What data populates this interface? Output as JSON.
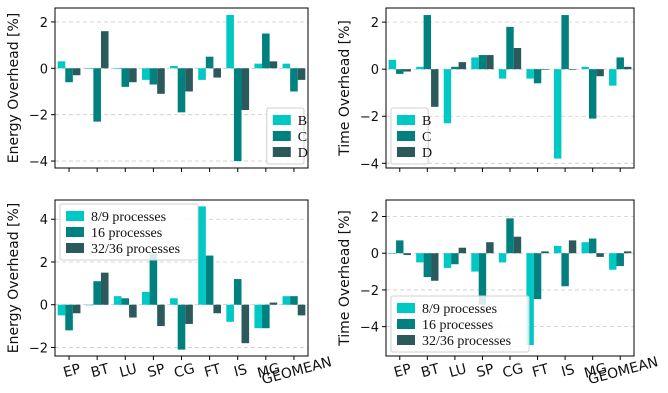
{
  "colors": {
    "s1": "#00c8c4",
    "s2": "#00807f",
    "s3": "#2a5a5b",
    "grid": "#cccccc"
  },
  "chart_data": [
    {
      "type": "bar",
      "ylabel": "Energy Overhead [%]",
      "categories": [
        "EP",
        "BT",
        "LU",
        "SP",
        "CG",
        "FT",
        "IS",
        "MG",
        "GEOMEAN"
      ],
      "ylim": [
        -4.3,
        2.6
      ],
      "yticks": [
        -4,
        -2,
        0,
        2
      ],
      "ytick_labels": [
        "−4",
        "−2",
        "0",
        "2"
      ],
      "legend_position": "lower-right",
      "show_xticklabels": false,
      "series": [
        {
          "name": "B",
          "values": [
            0.3,
            0.0,
            0.0,
            -0.5,
            0.1,
            -0.5,
            2.3,
            0.2,
            0.2
          ]
        },
        {
          "name": "C",
          "values": [
            -0.6,
            -2.3,
            -0.8,
            -0.7,
            -1.9,
            0.5,
            -4.0,
            1.5,
            -1.0
          ]
        },
        {
          "name": "D",
          "values": [
            -0.3,
            1.6,
            -0.6,
            -1.1,
            -1.0,
            -0.4,
            -1.8,
            0.3,
            -0.5
          ]
        }
      ]
    },
    {
      "type": "bar",
      "ylabel": "Time Overhead [%]",
      "categories": [
        "EP",
        "BT",
        "LU",
        "SP",
        "CG",
        "FT",
        "IS",
        "MG",
        "GEOMEAN"
      ],
      "ylim": [
        -4.2,
        2.6
      ],
      "yticks": [
        -4,
        -2,
        0,
        2
      ],
      "ytick_labels": [
        "−4",
        "−2",
        "0",
        "2"
      ],
      "legend_position": "lower-left",
      "show_xticklabels": false,
      "series": [
        {
          "name": "B",
          "values": [
            0.4,
            0.1,
            -2.3,
            0.5,
            -0.4,
            -0.4,
            -3.8,
            0.1,
            -0.7
          ]
        },
        {
          "name": "C",
          "values": [
            -0.2,
            2.3,
            0.1,
            0.6,
            1.8,
            -0.6,
            2.3,
            -2.1,
            0.5
          ]
        },
        {
          "name": "D",
          "values": [
            -0.1,
            -1.6,
            0.3,
            0.6,
            0.9,
            0.0,
            0.0,
            -0.3,
            0.1
          ]
        }
      ]
    },
    {
      "type": "bar",
      "ylabel": "Energy Overhead [%]",
      "categories": [
        "EP",
        "BT",
        "LU",
        "SP",
        "CG",
        "FT",
        "IS",
        "MG",
        "GEOMEAN"
      ],
      "ylim": [
        -2.4,
        4.9
      ],
      "yticks": [
        -2,
        0,
        2,
        4
      ],
      "ytick_labels": [
        "−2",
        "0",
        "2",
        "4"
      ],
      "legend_position": "upper-left",
      "show_xticklabels": true,
      "series": [
        {
          "name": "8/9 processes",
          "values": [
            -0.5,
            0.0,
            0.4,
            0.6,
            0.3,
            4.6,
            -0.8,
            -1.1,
            0.4
          ]
        },
        {
          "name": "16 processes",
          "values": [
            -1.2,
            1.1,
            0.3,
            2.4,
            -2.1,
            2.3,
            1.2,
            -1.1,
            0.4
          ]
        },
        {
          "name": "32/36 processes",
          "values": [
            -0.4,
            1.5,
            -0.6,
            -1.0,
            -0.9,
            -0.4,
            -1.8,
            0.1,
            -0.5
          ]
        }
      ]
    },
    {
      "type": "bar",
      "ylabel": "Time Overhead [%]",
      "categories": [
        "EP",
        "BT",
        "LU",
        "SP",
        "CG",
        "FT",
        "IS",
        "MG",
        "GEOMEAN"
      ],
      "ylim": [
        -5.6,
        2.9
      ],
      "yticks": [
        -4,
        -2,
        0,
        2
      ],
      "ytick_labels": [
        "−4",
        "−2",
        "0",
        "2"
      ],
      "legend_position": "lower-left",
      "show_xticklabels": true,
      "series": [
        {
          "name": "8/9 processes",
          "values": [
            0.0,
            -0.5,
            -0.8,
            -1.0,
            -0.5,
            -5.0,
            0.4,
            0.6,
            -0.9
          ]
        },
        {
          "name": "16 processes",
          "values": [
            0.7,
            -1.3,
            -0.6,
            -2.8,
            1.9,
            -2.5,
            -1.8,
            0.8,
            -0.7
          ]
        },
        {
          "name": "32/36 processes",
          "values": [
            -0.1,
            -1.5,
            0.3,
            0.6,
            0.9,
            0.1,
            0.7,
            -0.2,
            0.1
          ]
        }
      ]
    }
  ]
}
